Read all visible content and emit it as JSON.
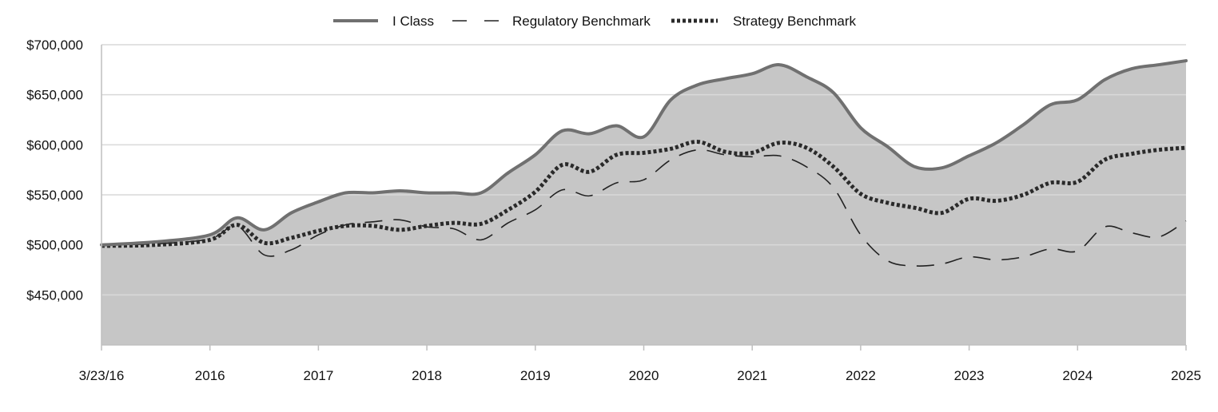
{
  "chart_data": {
    "type": "area",
    "title": "",
    "xlabel": "",
    "ylabel": "",
    "ylim": [
      400000,
      700000
    ],
    "yticks": [
      {
        "value": 700000,
        "label": "$700,000"
      },
      {
        "value": 650000,
        "label": "$650,000"
      },
      {
        "value": 600000,
        "label": "$600,000"
      },
      {
        "value": 550000,
        "label": "$550,000"
      },
      {
        "value": 500000,
        "label": "$500,000"
      },
      {
        "value": 450000,
        "label": "$450,000"
      }
    ],
    "xlim": [
      0,
      10
    ],
    "xticks": [
      {
        "value": 0,
        "label": "3/23/16"
      },
      {
        "value": 1,
        "label": "2016"
      },
      {
        "value": 2,
        "label": "2017"
      },
      {
        "value": 3,
        "label": "2018"
      },
      {
        "value": 4,
        "label": "2019"
      },
      {
        "value": 5,
        "label": "2020"
      },
      {
        "value": 6,
        "label": "2021"
      },
      {
        "value": 7,
        "label": "2022"
      },
      {
        "value": 8,
        "label": "2023"
      },
      {
        "value": 9,
        "label": "2024"
      },
      {
        "value": 10,
        "label": "2025"
      }
    ],
    "legend_position": "top-center",
    "series": [
      {
        "name": "I Class",
        "style": "solid",
        "filled": true,
        "color": "#707070",
        "fill": "#c6c6c6",
        "x": [
          0,
          0.5,
          1,
          1.25,
          1.5,
          1.75,
          2,
          2.25,
          2.5,
          2.75,
          3,
          3.25,
          3.5,
          3.75,
          4,
          4.25,
          4.5,
          4.75,
          5,
          5.25,
          5.5,
          5.75,
          6,
          6.25,
          6.5,
          6.75,
          7,
          7.25,
          7.5,
          7.75,
          8,
          8.25,
          8.5,
          8.75,
          9,
          9.25,
          9.5,
          9.75,
          10
        ],
        "values": [
          500000,
          503000,
          510000,
          527000,
          515000,
          532000,
          543000,
          552000,
          552000,
          554000,
          552000,
          552000,
          552000,
          572000,
          590000,
          614000,
          611000,
          619000,
          608000,
          645000,
          660000,
          666000,
          671000,
          680000,
          668000,
          652000,
          617000,
          598000,
          578000,
          577000,
          589000,
          602000,
          620000,
          640000,
          645000,
          665000,
          676000,
          680000,
          684000
        ]
      },
      {
        "name": "Regulatory Benchmark",
        "style": "dashed",
        "filled": false,
        "color": "#222222",
        "x": [
          0,
          0.5,
          1,
          1.25,
          1.5,
          1.75,
          2,
          2.25,
          2.5,
          2.75,
          3,
          3.25,
          3.5,
          3.75,
          4,
          4.25,
          4.5,
          4.75,
          5,
          5.25,
          5.5,
          5.75,
          6,
          6.25,
          6.5,
          6.75,
          7,
          7.25,
          7.5,
          7.75,
          8,
          8.25,
          8.5,
          8.75,
          9,
          9.25,
          9.5,
          9.75,
          10
        ],
        "values": [
          500000,
          501000,
          506000,
          519000,
          490000,
          495000,
          510000,
          520000,
          523000,
          525000,
          518000,
          516000,
          505000,
          522000,
          535000,
          555000,
          549000,
          562000,
          565000,
          585000,
          595000,
          590000,
          588000,
          589000,
          578000,
          557000,
          510000,
          484000,
          479000,
          481000,
          488000,
          485000,
          488000,
          496000,
          494000,
          518000,
          512000,
          508000,
          524000
        ]
      },
      {
        "name": "Strategy Benchmark",
        "style": "dotted",
        "filled": false,
        "color": "#2a2a2a",
        "x": [
          0,
          0.5,
          1,
          1.25,
          1.5,
          1.75,
          2,
          2.25,
          2.5,
          2.75,
          3,
          3.25,
          3.5,
          3.75,
          4,
          4.25,
          4.5,
          4.75,
          5,
          5.25,
          5.5,
          5.75,
          6,
          6.25,
          6.5,
          6.75,
          7,
          7.25,
          7.5,
          7.75,
          8,
          8.25,
          8.5,
          8.75,
          9,
          9.25,
          9.5,
          9.75,
          10
        ],
        "values": [
          499000,
          500000,
          505000,
          520000,
          502000,
          507000,
          514000,
          519000,
          519000,
          515000,
          519000,
          522000,
          521000,
          535000,
          553000,
          580000,
          573000,
          590000,
          592000,
          596000,
          603000,
          593000,
          592000,
          602000,
          597000,
          578000,
          551000,
          542000,
          537000,
          532000,
          546000,
          544000,
          550000,
          562000,
          563000,
          585000,
          591000,
          595000,
          597000
        ]
      }
    ]
  }
}
